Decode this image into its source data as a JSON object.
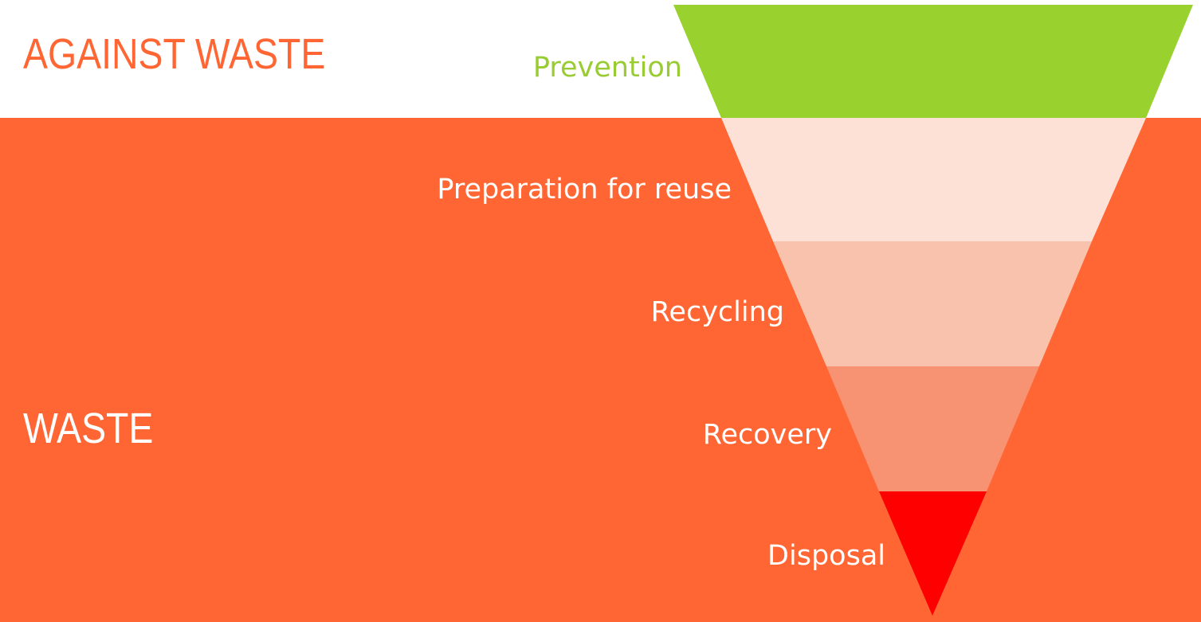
{
  "colors": {
    "background": "#ffffff",
    "waste_area": "#ff6633",
    "against_waste_title": "#ff6633",
    "waste_title": "#ffffff",
    "level_label": "#ffffff",
    "prevention_label": "#99cc33"
  },
  "titles": {
    "against_waste": "AGAINST WASTE",
    "waste": "WASTE"
  },
  "hierarchy": {
    "levels": [
      {
        "label": "Prevention",
        "color": "#99d12f"
      },
      {
        "label": "Preparation for reuse",
        "color": "#fde0d6"
      },
      {
        "label": "Recycling",
        "color": "#f9c2ad"
      },
      {
        "label": "Recovery",
        "color": "#f79272"
      },
      {
        "label": "Disposal",
        "color": "#ff0000"
      }
    ]
  }
}
